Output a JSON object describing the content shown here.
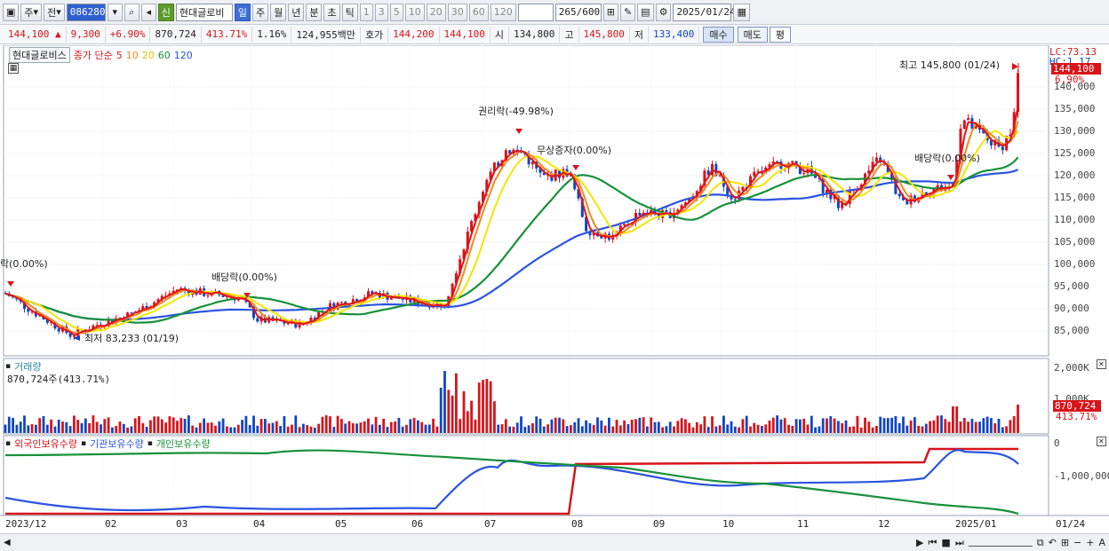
{
  "toolbar": {
    "market": "주",
    "period_prefix": "전",
    "code": "086280",
    "new_badge": "신",
    "stock_name": "현대글로비",
    "periods": [
      "일",
      "주",
      "월",
      "년",
      "분",
      "초",
      "틱"
    ],
    "active_period": "일",
    "intervals": [
      "1",
      "3",
      "5",
      "10",
      "20",
      "30",
      "60",
      "120"
    ],
    "count": "265",
    "count_total": "/600",
    "date": "2025/01/24"
  },
  "info": {
    "price": "144,100",
    "change": "9,300",
    "change_pct": "+6.90%",
    "volume": "870,724",
    "volume_ratio": "413.71%",
    "turnover": "1.16%",
    "amount": "124,955백만",
    "ask_label": "호가",
    "ask": "144,200",
    "bid": "144,100",
    "open_label": "시",
    "open": "134,800",
    "high_label": "고",
    "high": "145,800",
    "low_label": "저",
    "low": "133,400",
    "buy_label": "매수",
    "sell_label": "매도",
    "eval_label": "평"
  },
  "price_panel": {
    "title": "현대글로비스",
    "ma_label": "종가 단순",
    "ma_periods": [
      "5",
      "10",
      "20",
      "60",
      "120"
    ],
    "lc_label": "LC:73.13",
    "hc_label": "HC:1.17",
    "current_tag": "144,100",
    "current_pct": "6.90%",
    "y_labels": [
      "140,000",
      "135,000",
      "130,000",
      "125,000",
      "120,000",
      "115,000",
      "110,000",
      "105,000",
      "100,000",
      "95,000",
      "90,000",
      "85,000"
    ],
    "annotations": {
      "max": "최고 145,800 (01/24)",
      "min": "최저 83,233 (01/19)",
      "rights": "권리락(-49.98%)",
      "bonus": "무상증자(0.00%)",
      "div1": "배당락(0.00%)",
      "div2": "배당락(0.00%)",
      "left_cut": "락(0.00%)"
    }
  },
  "volume_panel": {
    "title": "거래량",
    "value": "870,724주(413.71%)",
    "y_labels": [
      "2,000K",
      "1,000K"
    ],
    "current_tag": "870,724",
    "current_pct": "413.71%"
  },
  "holding_panel": {
    "series": [
      "외국인보유수량",
      "기관보유수량",
      "개인보유수량"
    ],
    "y_labels": [
      "0",
      "-1,000,000"
    ]
  },
  "x_axis": [
    "2023/12",
    "02",
    "03",
    "04",
    "05",
    "06",
    "07",
    "08",
    "09",
    "10",
    "11",
    "12",
    "2025/01",
    "01/24"
  ],
  "colors": {
    "up": "#d7141a",
    "down": "#1146c2",
    "ma5": "#e0141a",
    "ma10": "#f08a1c",
    "ma20": "#f2e600",
    "ma60": "#17913a",
    "ma120": "#2b54e0"
  }
}
